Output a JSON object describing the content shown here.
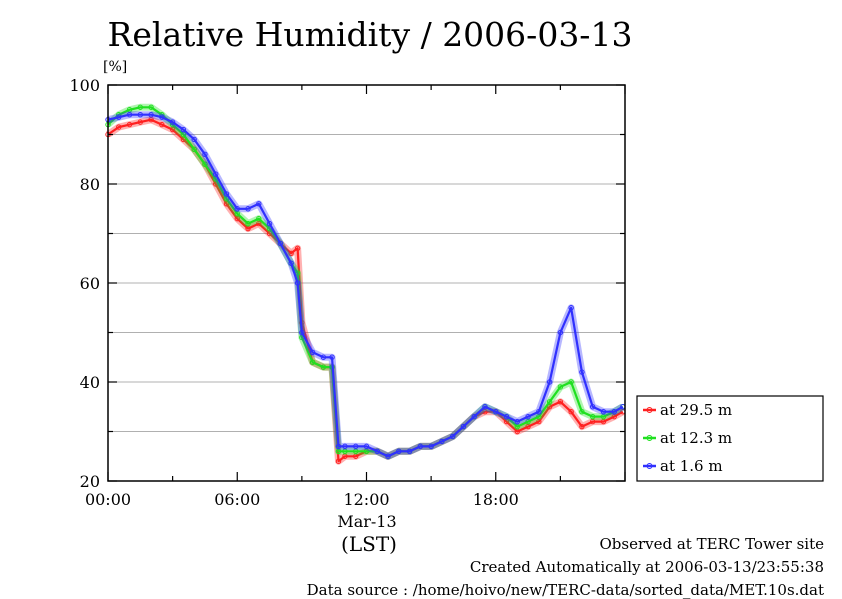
{
  "chart_data": {
    "type": "line",
    "title": "Relative Humidity / 2006-03-13",
    "ylabel": "[%]",
    "xlabel": "(LST)",
    "date_label": "Mar-13",
    "ylim": [
      20,
      100
    ],
    "xlim_hours": [
      0,
      24
    ],
    "y_ticks": [
      "20",
      "40",
      "60",
      "80",
      "100"
    ],
    "x_ticks": [
      {
        "hour": 0,
        "label": "00:00"
      },
      {
        "hour": 6,
        "label": "06:00"
      },
      {
        "hour": 12,
        "label": "12:00"
      },
      {
        "hour": 18,
        "label": "18:00"
      }
    ],
    "grid": true,
    "legend_position": "right",
    "hours": [
      0,
      0.5,
      1,
      1.5,
      2,
      2.5,
      3,
      3.5,
      4,
      4.5,
      5,
      5.5,
      6,
      6.5,
      7,
      7.5,
      8,
      8.5,
      8.8,
      9,
      9.5,
      10,
      10.4,
      10.7,
      11,
      11.5,
      12,
      12.5,
      13,
      13.5,
      14,
      14.5,
      15,
      15.5,
      16,
      16.5,
      17,
      17.5,
      18,
      18.5,
      19,
      19.5,
      20,
      20.5,
      21,
      21.5,
      22,
      22.5,
      23,
      23.5,
      23.9
    ],
    "series": [
      {
        "name": "at 29.5 m",
        "color": "#ff2020",
        "values": [
          90,
          91.5,
          92,
          92.5,
          93,
          92,
          91,
          89,
          87,
          84,
          80,
          76,
          73,
          71,
          72,
          70,
          68,
          66,
          67,
          52,
          44,
          43,
          43,
          24,
          25,
          25,
          26,
          26,
          25,
          26,
          26,
          27,
          27,
          28,
          29,
          31,
          33,
          34,
          34,
          32,
          30,
          31,
          32,
          35,
          36,
          34,
          31,
          32,
          32,
          33,
          34
        ]
      },
      {
        "name": "at 12.3 m",
        "color": "#20e020",
        "values": [
          92,
          94,
          95,
          95.5,
          95.5,
          94,
          92,
          90,
          87,
          84,
          81,
          77,
          74,
          72,
          73,
          71,
          68,
          64,
          62,
          49,
          44,
          43,
          43,
          26,
          26,
          26,
          26,
          26,
          25,
          26,
          26,
          27,
          27,
          28,
          29,
          31,
          33,
          35,
          34,
          33,
          31,
          32,
          33,
          36,
          39,
          40,
          34,
          33,
          33,
          34,
          35
        ]
      },
      {
        "name": "at 1.6 m",
        "color": "#3030ff",
        "values": [
          93,
          93.5,
          94,
          94,
          94,
          93.5,
          92.5,
          91,
          89,
          86,
          82,
          78,
          75,
          75,
          76,
          72,
          68,
          64,
          60,
          50,
          46,
          45,
          45,
          27,
          27,
          27,
          27,
          26,
          25,
          26,
          26,
          27,
          27,
          28,
          29,
          31,
          33,
          35,
          34,
          33,
          32,
          33,
          34,
          40,
          50,
          55,
          42,
          35,
          34,
          34,
          35
        ]
      }
    ]
  },
  "footer": {
    "line1": "Observed at TERC Tower site",
    "line2": "Created Automatically at 2006-03-13/23:55:38",
    "line3": "Data source : /home/hoivo/new/TERC-data/sorted_data/MET.10s.dat"
  }
}
